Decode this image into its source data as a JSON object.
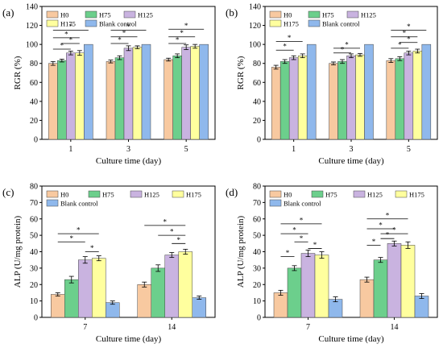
{
  "colors": {
    "H0": "#f8c9a0",
    "H75": "#6ccf8c",
    "H125": "#c9b3e0",
    "H175": "#ffff9e",
    "Blank control": "#8fb8ec"
  },
  "chart_data": [
    {
      "panel_label": "(a)",
      "type": "bar",
      "categories": [
        "1",
        "3",
        "5"
      ],
      "xlabel": "Culture time (day)",
      "ylabel": "RGR (%)",
      "ylim": [
        0,
        140
      ],
      "yticks": [
        "0",
        "20",
        "40",
        "60",
        "80",
        "100",
        "120",
        "140"
      ],
      "legend": "top-left, 3 columns",
      "series": [
        {
          "name": "H0",
          "values": [
            80,
            82,
            84
          ],
          "errors": [
            2,
            1.5,
            1.5
          ]
        },
        {
          "name": "H75",
          "values": [
            83,
            86,
            88
          ],
          "errors": [
            1.5,
            2,
            2
          ]
        },
        {
          "name": "H125",
          "values": [
            91,
            96,
            97
          ],
          "errors": [
            2,
            2.5,
            2.5
          ]
        },
        {
          "name": "H175",
          "values": [
            91,
            97,
            98
          ],
          "errors": [
            2.5,
            1.5,
            2
          ]
        },
        {
          "name": "Blank control",
          "values": [
            100,
            100,
            100
          ],
          "errors": [
            0,
            0,
            0
          ]
        }
      ],
      "significance_marker": "*",
      "significance": [
        {
          "cat": 0,
          "from": 0,
          "to": 4,
          "y": 115
        },
        {
          "cat": 0,
          "from": 0,
          "to": 3,
          "y": 107
        },
        {
          "cat": 0,
          "from": 1,
          "to": 3,
          "y": 101
        },
        {
          "cat": 0,
          "from": 0,
          "to": 2,
          "y": 95
        },
        {
          "cat": 1,
          "from": 0,
          "to": 4,
          "y": 115
        },
        {
          "cat": 1,
          "from": 0,
          "to": 3,
          "y": 108
        },
        {
          "cat": 1,
          "from": 0,
          "to": 2,
          "y": 101
        },
        {
          "cat": 2,
          "from": 0,
          "to": 4,
          "y": 116
        },
        {
          "cat": 2,
          "from": 0,
          "to": 3,
          "y": 108
        },
        {
          "cat": 2,
          "from": 0,
          "to": 2,
          "y": 101
        }
      ]
    },
    {
      "panel_label": "(b)",
      "type": "bar",
      "categories": [
        "1",
        "3",
        "5"
      ],
      "xlabel": "Culture time (day)",
      "ylabel": "RGR (%)",
      "ylim": [
        0,
        140
      ],
      "yticks": [
        "0",
        "20",
        "40",
        "60",
        "80",
        "100",
        "120",
        "140"
      ],
      "legend": "top-left, 3 columns",
      "series": [
        {
          "name": "H0",
          "values": [
            76,
            80,
            83
          ],
          "errors": [
            2,
            1.5,
            2
          ]
        },
        {
          "name": "H75",
          "values": [
            82,
            82,
            85
          ],
          "errors": [
            2,
            2,
            2
          ]
        },
        {
          "name": "H125",
          "values": [
            86,
            88,
            91
          ],
          "errors": [
            2,
            2,
            2
          ]
        },
        {
          "name": "H175",
          "values": [
            88,
            89,
            93
          ],
          "errors": [
            2,
            1.5,
            2
          ]
        },
        {
          "name": "Blank control",
          "values": [
            100,
            100,
            100
          ],
          "errors": [
            0,
            0,
            0
          ]
        }
      ],
      "significance_marker": "*",
      "significance": [
        {
          "cat": 0,
          "from": 0,
          "to": 3,
          "y": 103
        },
        {
          "cat": 0,
          "from": 0,
          "to": 2,
          "y": 94
        },
        {
          "cat": 1,
          "from": 0,
          "to": 3,
          "y": 96
        },
        {
          "cat": 1,
          "from": 0,
          "to": 2,
          "y": 91
        },
        {
          "cat": 2,
          "from": 0,
          "to": 4,
          "y": 115
        },
        {
          "cat": 2,
          "from": 0,
          "to": 3,
          "y": 108
        },
        {
          "cat": 2,
          "from": 1,
          "to": 3,
          "y": 102
        },
        {
          "cat": 2,
          "from": 0,
          "to": 2,
          "y": 96
        }
      ]
    },
    {
      "panel_label": "(c)",
      "type": "bar",
      "categories": [
        "7",
        "14"
      ],
      "xlabel": "Culture time (day)",
      "ylabel": "ALP (U/mg protein)",
      "ylim": [
        0,
        80
      ],
      "yticks": [
        "0",
        "10",
        "20",
        "30",
        "40",
        "50",
        "60",
        "70",
        "80"
      ],
      "legend": "top-left, 4 columns",
      "series": [
        {
          "name": "H0",
          "values": [
            14,
            20
          ],
          "errors": [
            1,
            1.5
          ]
        },
        {
          "name": "H75",
          "values": [
            23,
            30
          ],
          "errors": [
            2,
            2
          ]
        },
        {
          "name": "H125",
          "values": [
            35,
            38
          ],
          "errors": [
            2,
            1.5
          ]
        },
        {
          "name": "H175",
          "values": [
            36,
            40
          ],
          "errors": [
            1.5,
            1.5
          ]
        },
        {
          "name": "Blank control",
          "values": [
            9,
            12
          ],
          "errors": [
            1,
            1
          ]
        }
      ],
      "significance_marker": "*",
      "significance": [
        {
          "cat": 0,
          "from": 0,
          "to": 3,
          "y": 51
        },
        {
          "cat": 0,
          "from": 0,
          "to": 2,
          "y": 46
        },
        {
          "cat": 0,
          "from": 2,
          "to": 3,
          "y": 40
        },
        {
          "cat": 1,
          "from": 0,
          "to": 3,
          "y": 56
        },
        {
          "cat": 1,
          "from": 1,
          "to": 3,
          "y": 50
        },
        {
          "cat": 1,
          "from": 2,
          "to": 3,
          "y": 45
        }
      ]
    },
    {
      "panel_label": "(d)",
      "type": "bar",
      "categories": [
        "7",
        "14"
      ],
      "xlabel": "Culture time (day)",
      "ylabel": "ALP (U/mg protein)",
      "ylim": [
        0,
        80
      ],
      "yticks": [
        "0",
        "10",
        "20",
        "30",
        "40",
        "50",
        "60",
        "70",
        "80"
      ],
      "legend": "top-left, 4 columns",
      "series": [
        {
          "name": "H0",
          "values": [
            15,
            23
          ],
          "errors": [
            1.5,
            1.5
          ]
        },
        {
          "name": "H75",
          "values": [
            30,
            35
          ],
          "errors": [
            1.5,
            1.5
          ]
        },
        {
          "name": "H125",
          "values": [
            39,
            45
          ],
          "errors": [
            2,
            1.5
          ]
        },
        {
          "name": "H175",
          "values": [
            38,
            44
          ],
          "errors": [
            2,
            2
          ]
        },
        {
          "name": "Blank control",
          "values": [
            11,
            13
          ],
          "errors": [
            1.5,
            1.5
          ]
        }
      ],
      "significance_marker": "*",
      "significance": [
        {
          "cat": 0,
          "from": 0,
          "to": 3,
          "y": 57
        },
        {
          "cat": 0,
          "from": 0,
          "to": 2,
          "y": 51
        },
        {
          "cat": 0,
          "from": 1,
          "to": 2,
          "y": 46
        },
        {
          "cat": 0,
          "from": 2,
          "to": 3,
          "y": 42
        },
        {
          "cat": 0,
          "from": 0,
          "to": 1,
          "y": 37
        },
        {
          "cat": 1,
          "from": 0,
          "to": 3,
          "y": 60
        },
        {
          "cat": 1,
          "from": 0,
          "to": 2,
          "y": 54
        },
        {
          "cat": 1,
          "from": 1,
          "to": 3,
          "y": 51
        },
        {
          "cat": 1,
          "from": 1,
          "to": 2,
          "y": 48
        },
        {
          "cat": 1,
          "from": 0,
          "to": 1,
          "y": 44
        }
      ]
    }
  ]
}
